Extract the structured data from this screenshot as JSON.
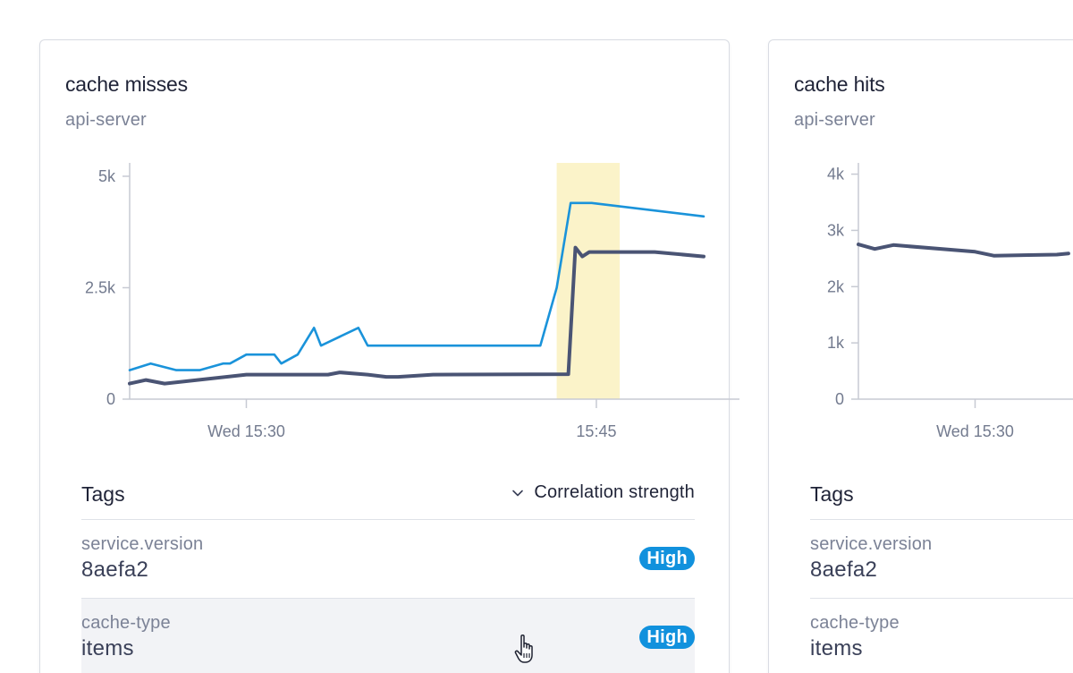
{
  "cards": [
    {
      "title": "cache misses",
      "subtitle": "api-server",
      "chart_data": {
        "type": "line",
        "ylim": [
          0,
          5300
        ],
        "y_ticks": [
          {
            "value": 0,
            "label": "0"
          },
          {
            "value": 2500,
            "label": "2.5k"
          },
          {
            "value": 5000,
            "label": "5k"
          }
        ],
        "x_ticks": [
          {
            "label": "Wed 15:30",
            "t": 30
          },
          {
            "label": "15:45",
            "t": 45
          }
        ],
        "xlim": [
          25,
          49.6
        ],
        "highlight_range": [
          43.3,
          46
        ],
        "colors": {
          "series1": "#1a93da",
          "series2": "#4a5474",
          "highlight": "#fbf3c9",
          "axis": "#c7cad3"
        },
        "series": [
          {
            "x": [
              25,
              25.9,
              27.0,
              28.0,
              29.0,
              29.3,
              30.0,
              31.2,
              31.5,
              32.2,
              32.9,
              33.2,
              34.8,
              35.2,
              42.6,
              43.3,
              43.9,
              44.7,
              44.8,
              49.6
            ],
            "values": [
              650,
              800,
              650,
              650,
              800,
              800,
              1000,
              1000,
              800,
              1000,
              1600,
              1200,
              1600,
              1200,
              1200,
              2500,
              4400,
              4400,
              4400,
              4100
            ]
          },
          {
            "x": [
              25,
              25.7,
              26.5,
              30.0,
              30.8,
              33.5,
              34.0,
              35.2,
              36.0,
              36.5,
              38.0,
              43.8,
              44.1,
              44.4,
              44.7,
              47.5,
              49.6
            ],
            "values": [
              350,
              430,
              350,
              550,
              550,
              550,
              600,
              550,
              500,
              500,
              550,
              560,
              3400,
              3200,
              3300,
              3300,
              3200
            ]
          }
        ]
      },
      "tags_title": "Tags",
      "sort_label": "Correlation strength",
      "sort_icon": "chevron-down-icon",
      "tags": [
        {
          "key": "service.version",
          "value": "8aefa2",
          "strength": "High"
        },
        {
          "key": "cache-type",
          "value": "items",
          "strength": "High"
        }
      ]
    },
    {
      "title": "cache hits",
      "subtitle": "api-server",
      "chart_data": {
        "type": "line",
        "ylim": [
          0,
          4200
        ],
        "y_ticks": [
          {
            "value": 0,
            "label": "0"
          },
          {
            "value": 1000,
            "label": "1k"
          },
          {
            "value": 2000,
            "label": "2k"
          },
          {
            "value": 3000,
            "label": "3k"
          },
          {
            "value": 4000,
            "label": "4k"
          }
        ],
        "x_ticks": [
          {
            "label": "Wed 15:30",
            "t": 30
          }
        ],
        "xlim": [
          25,
          49.6
        ],
        "colors": {
          "series1": "#4a5474",
          "axis": "#c7cad3"
        },
        "series": [
          {
            "x": [
              25,
              25.7,
              26.5,
              30.0,
              30.8,
              33.5,
              34.0
            ],
            "values": [
              2750,
              2670,
              2740,
              2620,
              2550,
              2570,
              2590
            ]
          }
        ]
      },
      "tags_title": "Tags",
      "tags": [
        {
          "key": "service.version",
          "value": "8aefa2"
        },
        {
          "key": "cache-type",
          "value": "items"
        }
      ]
    }
  ]
}
